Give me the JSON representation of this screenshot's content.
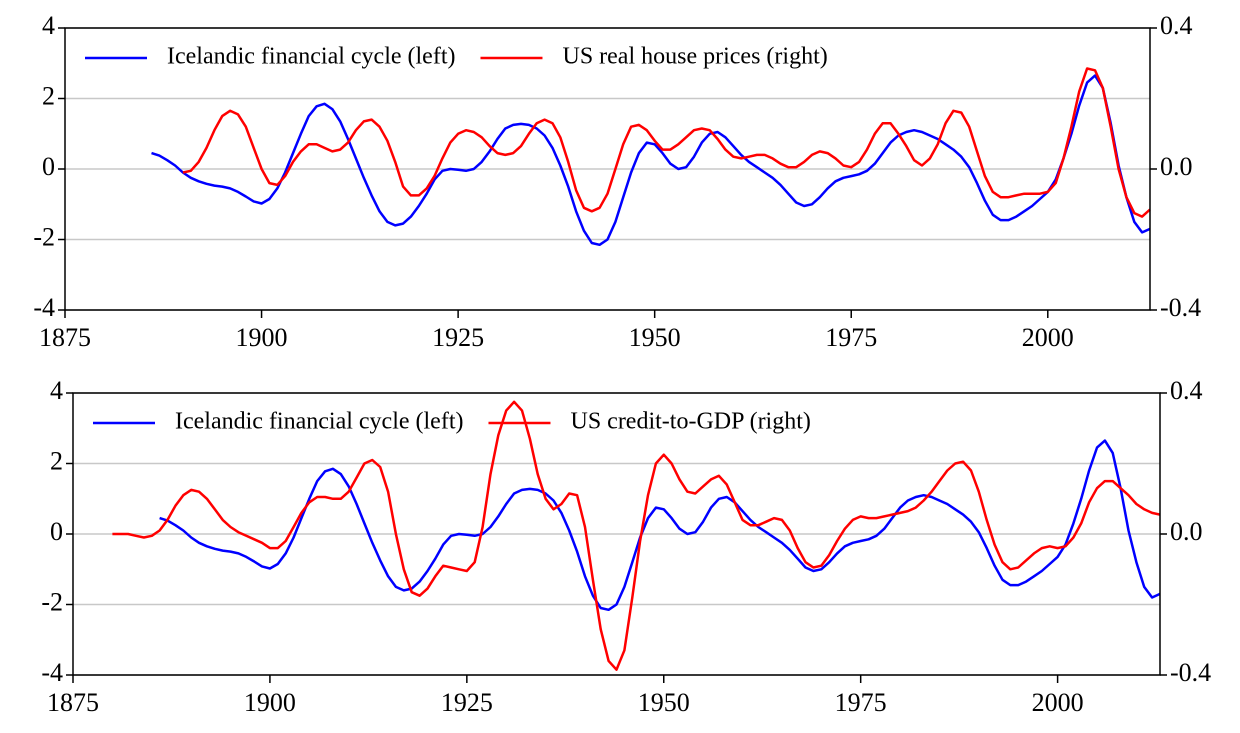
{
  "chart_data": [
    {
      "type": "line",
      "x": [
        1886,
        1887,
        1888,
        1889,
        1890,
        1891,
        1892,
        1893,
        1894,
        1895,
        1896,
        1897,
        1898,
        1899,
        1900,
        1901,
        1902,
        1903,
        1904,
        1905,
        1906,
        1907,
        1908,
        1909,
        1910,
        1911,
        1912,
        1913,
        1914,
        1915,
        1916,
        1917,
        1918,
        1919,
        1920,
        1921,
        1922,
        1923,
        1924,
        1925,
        1926,
        1927,
        1928,
        1929,
        1930,
        1931,
        1932,
        1933,
        1934,
        1935,
        1936,
        1937,
        1938,
        1939,
        1940,
        1941,
        1942,
        1943,
        1944,
        1945,
        1946,
        1947,
        1948,
        1949,
        1950,
        1951,
        1952,
        1953,
        1954,
        1955,
        1956,
        1957,
        1958,
        1959,
        1960,
        1961,
        1962,
        1963,
        1964,
        1965,
        1966,
        1967,
        1968,
        1969,
        1970,
        1971,
        1972,
        1973,
        1974,
        1975,
        1976,
        1977,
        1978,
        1979,
        1980,
        1981,
        1982,
        1983,
        1984,
        1985,
        1986,
        1987,
        1988,
        1989,
        1990,
        1991,
        1992,
        1993,
        1994,
        1995,
        1996,
        1997,
        1998,
        1999,
        2000,
        2001,
        2002,
        2003,
        2004,
        2005,
        2006,
        2007,
        2008,
        2009,
        2010,
        2011,
        2012,
        2013
      ],
      "series": [
        {
          "name": "Icelandic financial cycle (left)",
          "color": "#0000ff",
          "axis": "y",
          "values": [
            0.45,
            0.38,
            0.25,
            0.1,
            -0.1,
            -0.25,
            -0.35,
            -0.42,
            -0.47,
            -0.5,
            -0.55,
            -0.65,
            -0.78,
            -0.92,
            -0.98,
            -0.85,
            -0.55,
            -0.1,
            0.45,
            1.0,
            1.5,
            1.78,
            1.85,
            1.7,
            1.35,
            0.85,
            0.3,
            -0.25,
            -0.75,
            -1.2,
            -1.5,
            -1.6,
            -1.55,
            -1.35,
            -1.05,
            -0.7,
            -0.3,
            -0.05,
            0.0,
            -0.02,
            -0.05,
            0.0,
            0.2,
            0.5,
            0.85,
            1.15,
            1.25,
            1.28,
            1.25,
            1.15,
            0.95,
            0.6,
            0.1,
            -0.5,
            -1.2,
            -1.75,
            -2.1,
            -2.15,
            -2.0,
            -1.5,
            -0.8,
            -0.1,
            0.45,
            0.75,
            0.7,
            0.45,
            0.15,
            0.0,
            0.05,
            0.35,
            0.75,
            1.0,
            1.05,
            0.9,
            0.65,
            0.4,
            0.2,
            0.05,
            -0.1,
            -0.25,
            -0.45,
            -0.7,
            -0.95,
            -1.05,
            -1.0,
            -0.8,
            -0.55,
            -0.35,
            -0.25,
            -0.2,
            -0.15,
            -0.05,
            0.15,
            0.45,
            0.75,
            0.95,
            1.05,
            1.1,
            1.05,
            0.95,
            0.85,
            0.7,
            0.55,
            0.35,
            0.05,
            -0.4,
            -0.9,
            -1.3,
            -1.45,
            -1.45,
            -1.35,
            -1.2,
            -1.05,
            -0.85,
            -0.65,
            -0.3,
            0.3,
            1.0,
            1.8,
            2.45,
            2.65,
            2.3,
            1.3,
            0.1,
            -0.8,
            -1.5,
            -1.8,
            -1.7
          ]
        },
        {
          "name": "US real house prices (right)",
          "color": "#ff0000",
          "axis": "y2",
          "values": [
            null,
            null,
            null,
            null,
            -0.01,
            -0.005,
            0.02,
            0.06,
            0.11,
            0.15,
            0.165,
            0.155,
            0.12,
            0.06,
            0.0,
            -0.04,
            -0.045,
            -0.02,
            0.02,
            0.05,
            0.07,
            0.07,
            0.06,
            0.05,
            0.055,
            0.075,
            0.11,
            0.135,
            0.14,
            0.12,
            0.08,
            0.02,
            -0.05,
            -0.075,
            -0.075,
            -0.055,
            -0.02,
            0.03,
            0.075,
            0.1,
            0.11,
            0.105,
            0.09,
            0.065,
            0.045,
            0.04,
            0.045,
            0.065,
            0.1,
            0.13,
            0.14,
            0.13,
            0.09,
            0.02,
            -0.06,
            -0.11,
            -0.12,
            -0.11,
            -0.07,
            0.0,
            0.07,
            0.12,
            0.125,
            0.11,
            0.08,
            0.055,
            0.055,
            0.07,
            0.09,
            0.11,
            0.115,
            0.11,
            0.085,
            0.055,
            0.035,
            0.03,
            0.035,
            0.04,
            0.04,
            0.03,
            0.015,
            0.005,
            0.005,
            0.02,
            0.04,
            0.05,
            0.045,
            0.03,
            0.01,
            0.005,
            0.02,
            0.055,
            0.1,
            0.13,
            0.13,
            0.1,
            0.065,
            0.025,
            0.01,
            0.03,
            0.07,
            0.13,
            0.165,
            0.16,
            0.12,
            0.05,
            -0.02,
            -0.065,
            -0.08,
            -0.08,
            -0.075,
            -0.07,
            -0.07,
            -0.07,
            -0.065,
            -0.04,
            0.03,
            0.12,
            0.22,
            0.285,
            0.28,
            0.23,
            0.12,
            0.0,
            -0.08,
            -0.125,
            -0.135,
            -0.115
          ]
        }
      ],
      "xlim": [
        1875,
        2013
      ],
      "xticks": [
        1875,
        1900,
        1925,
        1950,
        1975,
        2000
      ],
      "ylim": [
        -4,
        4
      ],
      "yticks": [
        -4,
        -2,
        0,
        2,
        4
      ],
      "y2lim": [
        -0.4,
        0.4
      ],
      "y2ticks": [
        -0.4,
        {
          "value": 0,
          "label": "0.0"
        },
        0.4
      ],
      "grid": true,
      "legend": "top"
    },
    {
      "type": "line",
      "x": [
        1880,
        1881,
        1882,
        1883,
        1884,
        1885,
        1886,
        1887,
        1888,
        1889,
        1890,
        1891,
        1892,
        1893,
        1894,
        1895,
        1896,
        1897,
        1898,
        1899,
        1900,
        1901,
        1902,
        1903,
        1904,
        1905,
        1906,
        1907,
        1908,
        1909,
        1910,
        1911,
        1912,
        1913,
        1914,
        1915,
        1916,
        1917,
        1918,
        1919,
        1920,
        1921,
        1922,
        1923,
        1924,
        1925,
        1926,
        1927,
        1928,
        1929,
        1930,
        1931,
        1932,
        1933,
        1934,
        1935,
        1936,
        1937,
        1938,
        1939,
        1940,
        1941,
        1942,
        1943,
        1944,
        1945,
        1946,
        1947,
        1948,
        1949,
        1950,
        1951,
        1952,
        1953,
        1954,
        1955,
        1956,
        1957,
        1958,
        1959,
        1960,
        1961,
        1962,
        1963,
        1964,
        1965,
        1966,
        1967,
        1968,
        1969,
        1970,
        1971,
        1972,
        1973,
        1974,
        1975,
        1976,
        1977,
        1978,
        1979,
        1980,
        1981,
        1982,
        1983,
        1984,
        1985,
        1986,
        1987,
        1988,
        1989,
        1990,
        1991,
        1992,
        1993,
        1994,
        1995,
        1996,
        1997,
        1998,
        1999,
        2000,
        2001,
        2002,
        2003,
        2004,
        2005,
        2006,
        2007,
        2008,
        2009,
        2010,
        2011,
        2012,
        2013
      ],
      "series": [
        {
          "name": "Icelandic financial cycle (left)",
          "color": "#0000ff",
          "axis": "y",
          "values": [
            null,
            null,
            null,
            null,
            null,
            null,
            0.45,
            0.38,
            0.25,
            0.1,
            -0.1,
            -0.25,
            -0.35,
            -0.42,
            -0.47,
            -0.5,
            -0.55,
            -0.65,
            -0.78,
            -0.92,
            -0.98,
            -0.85,
            -0.55,
            -0.1,
            0.45,
            1.0,
            1.5,
            1.78,
            1.85,
            1.7,
            1.35,
            0.85,
            0.3,
            -0.25,
            -0.75,
            -1.2,
            -1.5,
            -1.6,
            -1.55,
            -1.35,
            -1.05,
            -0.7,
            -0.3,
            -0.05,
            0.0,
            -0.02,
            -0.05,
            0.0,
            0.2,
            0.5,
            0.85,
            1.15,
            1.25,
            1.28,
            1.25,
            1.15,
            0.95,
            0.6,
            0.1,
            -0.5,
            -1.2,
            -1.75,
            -2.1,
            -2.15,
            -2.0,
            -1.5,
            -0.8,
            -0.1,
            0.45,
            0.75,
            0.7,
            0.45,
            0.15,
            0.0,
            0.05,
            0.35,
            0.75,
            1.0,
            1.05,
            0.9,
            0.65,
            0.4,
            0.2,
            0.05,
            -0.1,
            -0.25,
            -0.45,
            -0.7,
            -0.95,
            -1.05,
            -1.0,
            -0.8,
            -0.55,
            -0.35,
            -0.25,
            -0.2,
            -0.15,
            -0.05,
            0.15,
            0.45,
            0.75,
            0.95,
            1.05,
            1.1,
            1.05,
            0.95,
            0.85,
            0.7,
            0.55,
            0.35,
            0.05,
            -0.4,
            -0.9,
            -1.3,
            -1.45,
            -1.45,
            -1.35,
            -1.2,
            -1.05,
            -0.85,
            -0.65,
            -0.3,
            0.3,
            1.0,
            1.8,
            2.45,
            2.65,
            2.3,
            1.3,
            0.1,
            -0.8,
            -1.5,
            -1.8,
            -1.7
          ]
        },
        {
          "name": "US credit-to-GDP (right)",
          "color": "#ff0000",
          "axis": "y2",
          "values": [
            0.0,
            0.0,
            0.0,
            -0.005,
            -0.01,
            -0.005,
            0.01,
            0.04,
            0.08,
            0.11,
            0.125,
            0.12,
            0.1,
            0.07,
            0.04,
            0.02,
            0.005,
            -0.005,
            -0.015,
            -0.025,
            -0.04,
            -0.04,
            -0.02,
            0.02,
            0.06,
            0.09,
            0.105,
            0.105,
            0.1,
            0.1,
            0.12,
            0.16,
            0.2,
            0.21,
            0.19,
            0.12,
            0.0,
            -0.1,
            -0.165,
            -0.175,
            -0.155,
            -0.12,
            -0.09,
            -0.095,
            -0.1,
            -0.105,
            -0.08,
            0.02,
            0.17,
            0.28,
            0.35,
            0.375,
            0.35,
            0.27,
            0.17,
            0.1,
            0.07,
            0.085,
            0.115,
            0.11,
            0.02,
            -0.13,
            -0.27,
            -0.36,
            -0.385,
            -0.33,
            -0.18,
            -0.02,
            0.11,
            0.2,
            0.225,
            0.2,
            0.155,
            0.12,
            0.115,
            0.135,
            0.155,
            0.165,
            0.14,
            0.09,
            0.04,
            0.025,
            0.025,
            0.035,
            0.045,
            0.04,
            0.01,
            -0.04,
            -0.08,
            -0.095,
            -0.09,
            -0.06,
            -0.02,
            0.015,
            0.04,
            0.05,
            0.045,
            0.045,
            0.05,
            0.055,
            0.06,
            0.065,
            0.075,
            0.095,
            0.12,
            0.15,
            0.18,
            0.2,
            0.205,
            0.18,
            0.12,
            0.04,
            -0.03,
            -0.08,
            -0.1,
            -0.095,
            -0.075,
            -0.055,
            -0.04,
            -0.035,
            -0.04,
            -0.035,
            -0.01,
            0.03,
            0.09,
            0.13,
            0.15,
            0.15,
            0.13,
            0.11,
            0.085,
            0.07,
            0.06,
            0.055
          ]
        }
      ],
      "xlim": [
        1875,
        2013
      ],
      "xticks": [
        1875,
        1900,
        1925,
        1950,
        1975,
        2000
      ],
      "ylim": [
        -4,
        4
      ],
      "yticks": [
        -4,
        -2,
        0,
        2,
        4
      ],
      "y2lim": [
        -0.4,
        0.4
      ],
      "y2ticks": [
        -0.4,
        {
          "value": 0,
          "label": "0.0"
        },
        0.4
      ],
      "grid": true,
      "legend": "top"
    }
  ]
}
